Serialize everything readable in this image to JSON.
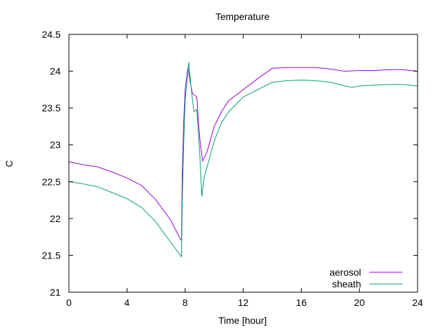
{
  "chart_data": {
    "type": "line",
    "title": "Temperature",
    "xlabel": "Time [hour]",
    "ylabel": "C",
    "xlim": [
      0,
      24
    ],
    "ylim": [
      21,
      24.5
    ],
    "xticks": [
      0,
      4,
      8,
      12,
      16,
      20,
      24
    ],
    "yticks": [
      21,
      21.5,
      22,
      22.5,
      23,
      23.5,
      24,
      24.5
    ],
    "ytick_labels": [
      "21",
      "21.5",
      "22",
      "22.5",
      "23",
      "23.5",
      "24",
      "24.5"
    ],
    "grid": false,
    "legend_position": "bottom-right",
    "series": [
      {
        "name": "aerosol",
        "color": "#9400d3",
        "points": [
          [
            0,
            22.77
          ],
          [
            1,
            22.73
          ],
          [
            2,
            22.7
          ],
          [
            3,
            22.63
          ],
          [
            4,
            22.55
          ],
          [
            5,
            22.45
          ],
          [
            6,
            22.25
          ],
          [
            7,
            21.98
          ],
          [
            7.6,
            21.75
          ],
          [
            7.75,
            21.7
          ],
          [
            7.8,
            22.6
          ],
          [
            7.9,
            23.3
          ],
          [
            8.0,
            23.75
          ],
          [
            8.2,
            24.05
          ],
          [
            8.35,
            23.85
          ],
          [
            8.5,
            23.7
          ],
          [
            8.8,
            23.65
          ],
          [
            9.0,
            23.1
          ],
          [
            9.2,
            22.78
          ],
          [
            9.5,
            22.9
          ],
          [
            10,
            23.25
          ],
          [
            10.5,
            23.45
          ],
          [
            11,
            23.6
          ],
          [
            12,
            23.75
          ],
          [
            13,
            23.9
          ],
          [
            14,
            24.04
          ],
          [
            15,
            24.05
          ],
          [
            16,
            24.05
          ],
          [
            17,
            24.05
          ],
          [
            18,
            24.03
          ],
          [
            19,
            24.0
          ],
          [
            20,
            24.01
          ],
          [
            21,
            24.01
          ],
          [
            22,
            24.02
          ],
          [
            23,
            24.02
          ],
          [
            24,
            24.0
          ]
        ]
      },
      {
        "name": "sheath",
        "color": "#009e73",
        "points": [
          [
            0,
            22.5
          ],
          [
            1,
            22.47
          ],
          [
            2,
            22.43
          ],
          [
            3,
            22.35
          ],
          [
            4,
            22.27
          ],
          [
            5,
            22.15
          ],
          [
            6,
            21.95
          ],
          [
            7,
            21.68
          ],
          [
            7.6,
            21.52
          ],
          [
            7.75,
            21.48
          ],
          [
            7.8,
            22.2
          ],
          [
            7.9,
            23.0
          ],
          [
            8.0,
            23.6
          ],
          [
            8.25,
            24.12
          ],
          [
            8.4,
            23.8
          ],
          [
            8.6,
            23.45
          ],
          [
            8.8,
            23.48
          ],
          [
            9.0,
            22.9
          ],
          [
            9.15,
            22.3
          ],
          [
            9.3,
            22.55
          ],
          [
            10,
            23.05
          ],
          [
            10.5,
            23.3
          ],
          [
            11,
            23.45
          ],
          [
            12,
            23.65
          ],
          [
            13,
            23.75
          ],
          [
            14,
            23.85
          ],
          [
            15,
            23.87
          ],
          [
            16,
            23.88
          ],
          [
            17,
            23.87
          ],
          [
            18,
            23.85
          ],
          [
            19,
            23.8
          ],
          [
            19.5,
            23.78
          ],
          [
            20,
            23.8
          ],
          [
            21,
            23.81
          ],
          [
            22,
            23.82
          ],
          [
            23,
            23.82
          ],
          [
            24,
            23.8
          ]
        ]
      }
    ]
  }
}
